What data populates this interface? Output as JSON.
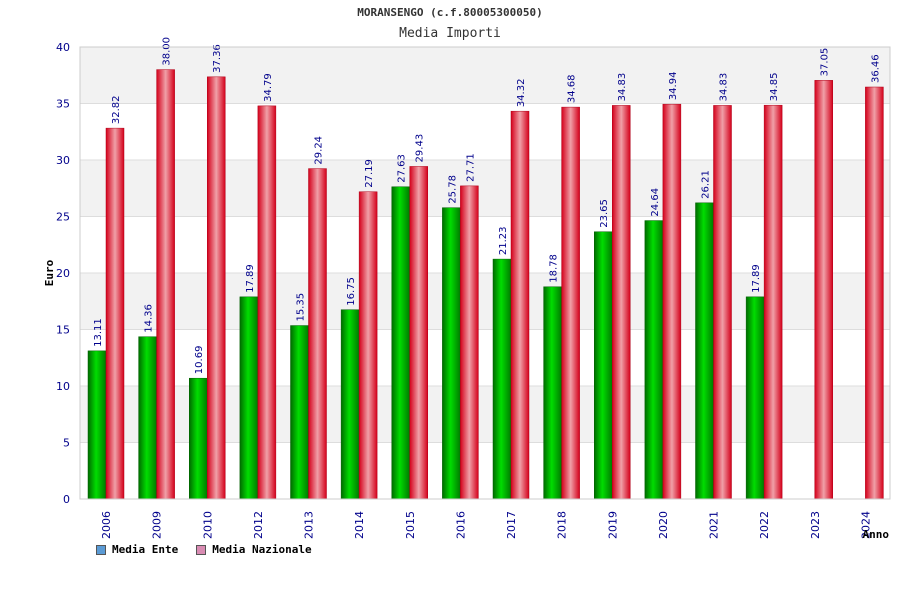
{
  "header": {
    "title": "MORANSENGO (c.f.80005300050)",
    "subtitle": "Media Importi"
  },
  "legend": {
    "items": [
      {
        "label": "Media Ente",
        "color": "#5b9bd5"
      },
      {
        "label": "Media Nazionale",
        "color": "#d98cb3"
      }
    ]
  },
  "chart_data": {
    "type": "bar",
    "title": "Media Importi",
    "xlabel": "Anno",
    "ylabel": "Euro",
    "ylim": [
      0,
      40
    ],
    "yticks": [
      0,
      5,
      10,
      15,
      20,
      25,
      30,
      35,
      40
    ],
    "grid": true,
    "legend_position": "bottom-left",
    "categories": [
      "2006",
      "2009",
      "2010",
      "2012",
      "2013",
      "2014",
      "2015",
      "2016",
      "2017",
      "2018",
      "2019",
      "2020",
      "2021",
      "2022",
      "2023",
      "2024"
    ],
    "series": [
      {
        "name": "Media Ente",
        "color": "#00aa00",
        "values": [
          13.11,
          14.36,
          10.69,
          17.89,
          15.35,
          16.75,
          27.63,
          25.78,
          21.23,
          18.78,
          23.65,
          24.64,
          26.21,
          17.89,
          null,
          null
        ],
        "labels": [
          "13.11",
          "14.36",
          "10.69",
          "17.89",
          "15.35",
          "16.75",
          "27.63",
          "25.78",
          "21.23",
          "18.78",
          "23.65",
          "24.64",
          "26.21",
          "17.89",
          null,
          null
        ]
      },
      {
        "name": "Media Nazionale",
        "color": "#e8001c",
        "values": [
          32.82,
          38.0,
          37.36,
          34.79,
          29.24,
          27.19,
          29.43,
          27.71,
          34.32,
          34.68,
          34.83,
          34.94,
          34.83,
          34.85,
          37.05,
          36.46
        ],
        "labels": [
          "32.82",
          "38.00",
          "37.36",
          "34.79",
          "29.24",
          "27.19",
          "29.43",
          "27.71",
          "34.32",
          "34.68",
          "34.83",
          "34.94",
          "34.83",
          "34.85",
          "37.05",
          "36.46"
        ]
      }
    ]
  }
}
